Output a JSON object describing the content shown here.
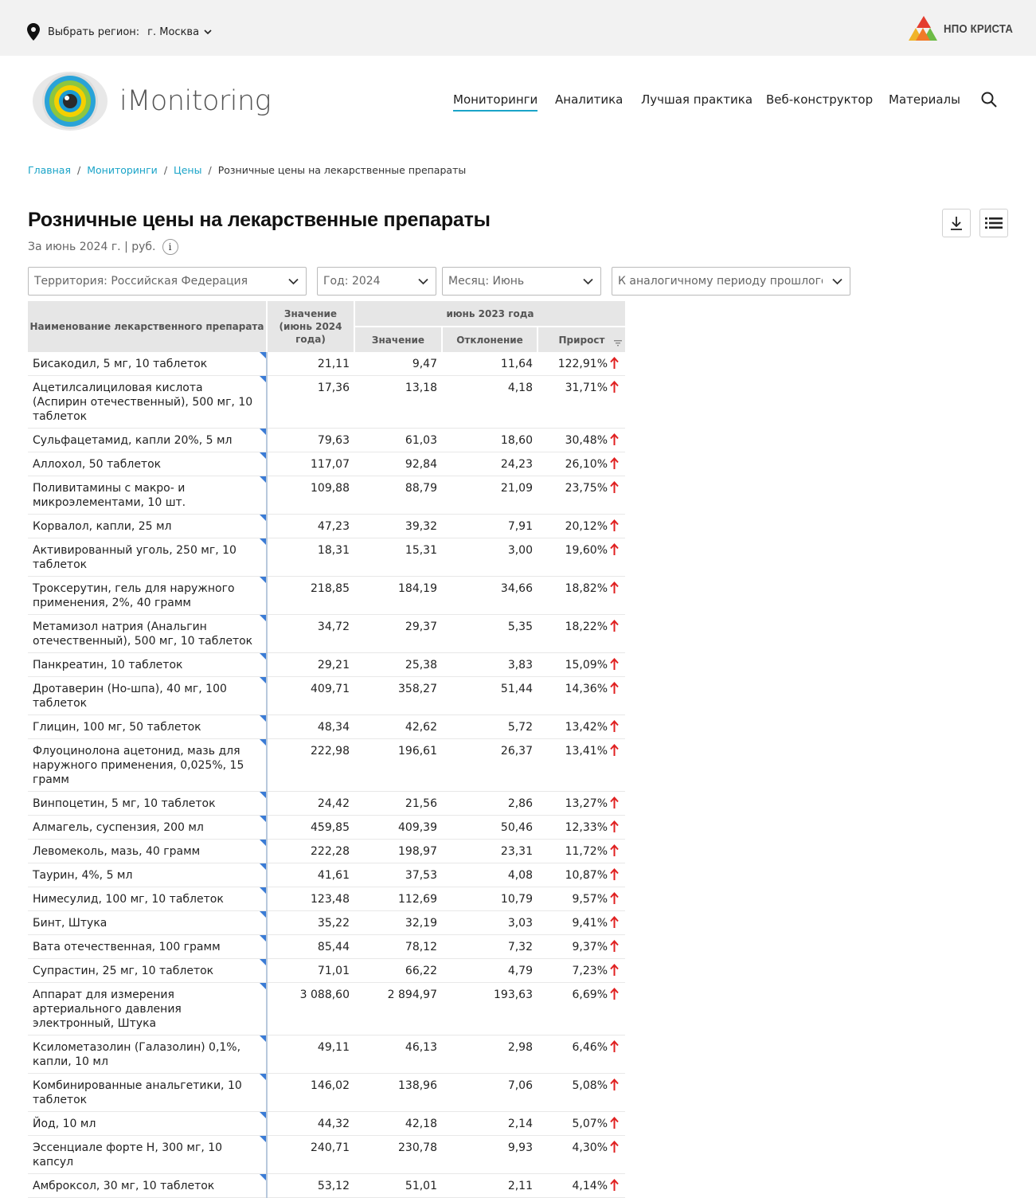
{
  "topbar": {
    "region_label": "Выбрать регион:",
    "region_value": "г. Москва",
    "partner_logo_text": "НПО КРИСТА"
  },
  "logo": {
    "text": "iMonitoring"
  },
  "nav": [
    {
      "label": "Мониторинги",
      "active": true
    },
    {
      "label": "Аналитика"
    },
    {
      "label": "Лучшая практика"
    },
    {
      "label": "Веб-конструктор"
    },
    {
      "label": "Материалы"
    }
  ],
  "breadcrumb": [
    "Главная",
    "Мониторинги",
    "Цены",
    "Розничные цены на лекарственные препараты"
  ],
  "page": {
    "title": "Розничные цены на лекарственные препараты",
    "subtitle": "За июнь 2024 г. | руб.",
    "info_glyph": "i"
  },
  "filters": {
    "territory": "Территория: Российская  Федерация",
    "year": "Год: 2024",
    "month": "Месяц: Июнь",
    "comparison": "К аналогичному периоду прошлого года"
  },
  "table": {
    "headers": {
      "name": "Наименование лекарственного препарата",
      "value": "Значение (июнь 2024 года)",
      "group": "июнь 2023 года",
      "prev_value": "Значение",
      "deviation": "Отклонение",
      "growth": "Прирост"
    },
    "trend_color": "#e02020",
    "rows": [
      {
        "name": "Бисакодил, 5 мг, 10 таблеток",
        "value": "21,11",
        "prev": "9,47",
        "dev": "11,64",
        "growth": "122,91%"
      },
      {
        "name": "Ацетилсалициловая кислота (Аспирин отечественный), 500 мг, 10 таблеток",
        "value": "17,36",
        "prev": "13,18",
        "dev": "4,18",
        "growth": "31,71%"
      },
      {
        "name": "Сульфацетамид, капли 20%, 5 мл",
        "value": "79,63",
        "prev": "61,03",
        "dev": "18,60",
        "growth": "30,48%"
      },
      {
        "name": "Аллохол, 50 таблеток",
        "value": "117,07",
        "prev": "92,84",
        "dev": "24,23",
        "growth": "26,10%"
      },
      {
        "name": "Поливитамины с макро- и микроэлементами, 10 шт.",
        "value": "109,88",
        "prev": "88,79",
        "dev": "21,09",
        "growth": "23,75%"
      },
      {
        "name": "Корвалол, капли, 25 мл",
        "value": "47,23",
        "prev": "39,32",
        "dev": "7,91",
        "growth": "20,12%"
      },
      {
        "name": "Активированный уголь, 250 мг, 10 таблеток",
        "value": "18,31",
        "prev": "15,31",
        "dev": "3,00",
        "growth": "19,60%"
      },
      {
        "name": "Троксерутин, гель для наружного применения, 2%, 40 грамм",
        "value": "218,85",
        "prev": "184,19",
        "dev": "34,66",
        "growth": "18,82%"
      },
      {
        "name": "Метамизол натрия (Анальгин отечественный), 500 мг, 10 таблеток",
        "value": "34,72",
        "prev": "29,37",
        "dev": "5,35",
        "growth": "18,22%"
      },
      {
        "name": "Панкреатин, 10 таблеток",
        "value": "29,21",
        "prev": "25,38",
        "dev": "3,83",
        "growth": "15,09%"
      },
      {
        "name": "Дротаверин (Но-шпа), 40 мг, 100 таблеток",
        "value": "409,71",
        "prev": "358,27",
        "dev": "51,44",
        "growth": "14,36%"
      },
      {
        "name": "Глицин, 100 мг, 50 таблеток",
        "value": "48,34",
        "prev": "42,62",
        "dev": "5,72",
        "growth": "13,42%"
      },
      {
        "name": "Флуоцинолона ацетонид, мазь для наружного применения, 0,025%, 15 грамм",
        "value": "222,98",
        "prev": "196,61",
        "dev": "26,37",
        "growth": "13,41%"
      },
      {
        "name": "Винпоцетин, 5 мг, 10 таблеток",
        "value": "24,42",
        "prev": "21,56",
        "dev": "2,86",
        "growth": "13,27%"
      },
      {
        "name": "Алмагель, суспензия, 200 мл",
        "value": "459,85",
        "prev": "409,39",
        "dev": "50,46",
        "growth": "12,33%"
      },
      {
        "name": "Левомеколь, мазь, 40 грамм",
        "value": "222,28",
        "prev": "198,97",
        "dev": "23,31",
        "growth": "11,72%"
      },
      {
        "name": "Таурин, 4%, 5 мл",
        "value": "41,61",
        "prev": "37,53",
        "dev": "4,08",
        "growth": "10,87%"
      },
      {
        "name": "Нимесулид, 100 мг, 10 таблеток",
        "value": "123,48",
        "prev": "112,69",
        "dev": "10,79",
        "growth": "9,57%"
      },
      {
        "name": "Бинт, Штука",
        "value": "35,22",
        "prev": "32,19",
        "dev": "3,03",
        "growth": "9,41%"
      },
      {
        "name": "Вата отечественная, 100 грамм",
        "value": "85,44",
        "prev": "78,12",
        "dev": "7,32",
        "growth": "9,37%"
      },
      {
        "name": "Супрастин, 25 мг, 10 таблеток",
        "value": "71,01",
        "prev": "66,22",
        "dev": "4,79",
        "growth": "7,23%"
      },
      {
        "name": "Аппарат для измерения артериального давления электронный, Штука",
        "value": "3 088,60",
        "prev": "2 894,97",
        "dev": "193,63",
        "growth": "6,69%"
      },
      {
        "name": "Ксилометазолин (Галазолин) 0,1%, капли, 10 мл",
        "value": "49,11",
        "prev": "46,13",
        "dev": "2,98",
        "growth": "6,46%"
      },
      {
        "name": "Комбинированные анальгетики, 10 таблеток",
        "value": "146,02",
        "prev": "138,96",
        "dev": "7,06",
        "growth": "5,08%"
      },
      {
        "name": "Йод, 10 мл",
        "value": "44,32",
        "prev": "42,18",
        "dev": "2,14",
        "growth": "5,07%"
      },
      {
        "name": "Эссенциале форте Н, 300 мг, 10 капсул",
        "value": "240,71",
        "prev": "230,78",
        "dev": "9,93",
        "growth": "4,30%"
      },
      {
        "name": "Амброксол, 30 мг, 10 таблеток",
        "value": "53,12",
        "prev": "51,01",
        "dev": "2,11",
        "growth": "4,14%"
      }
    ]
  }
}
